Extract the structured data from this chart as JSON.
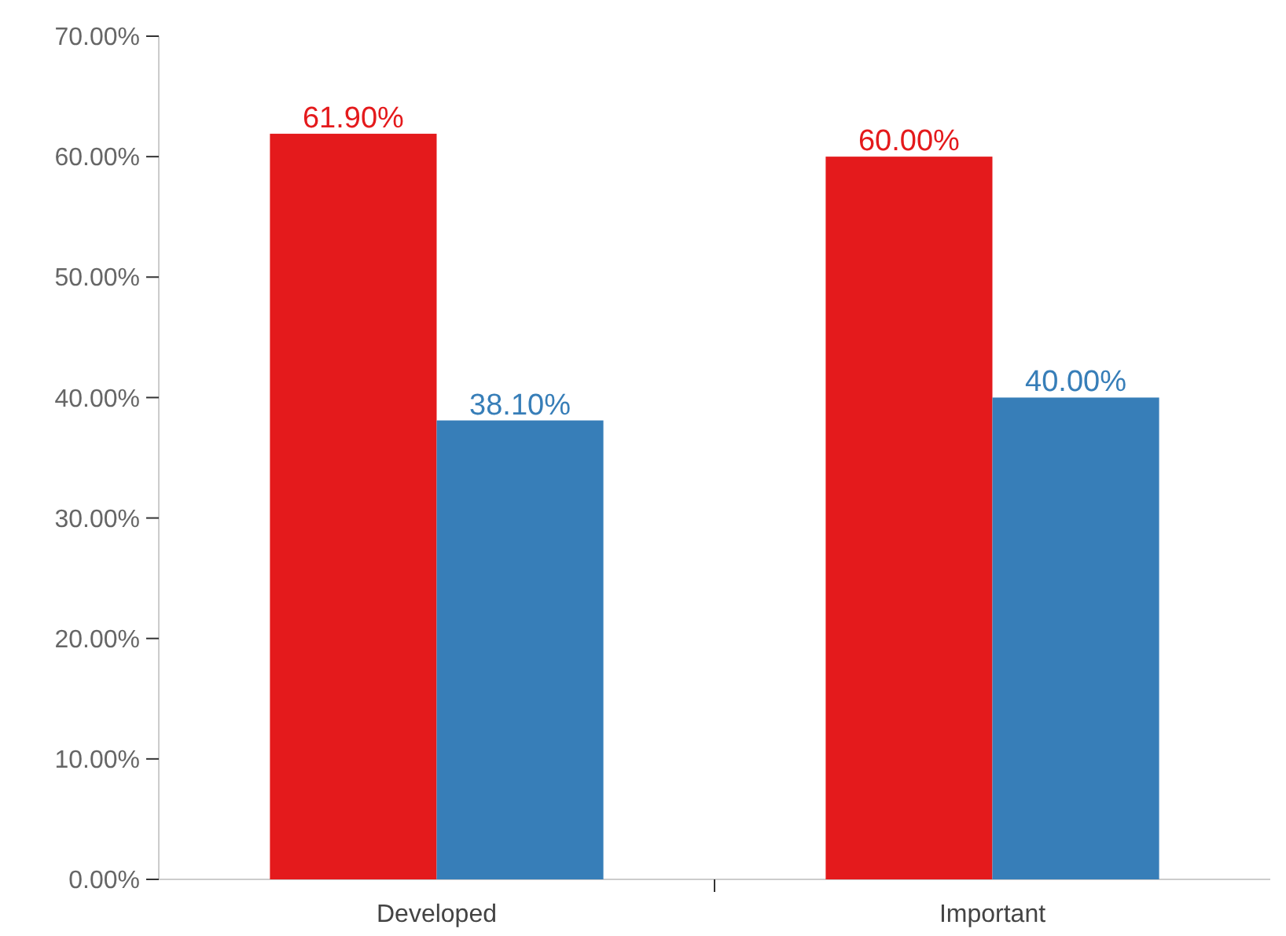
{
  "chart_data": {
    "type": "bar",
    "categories": [
      "Developed",
      "Important"
    ],
    "series": [
      {
        "color": "#e41a1c",
        "values": [
          61.9,
          60.0
        ],
        "value_labels": [
          "61.90%",
          "60.00%"
        ]
      },
      {
        "color": "#377eb8",
        "values": [
          38.1,
          40.0
        ],
        "value_labels": [
          "38.10%",
          "40.00%"
        ]
      }
    ],
    "ylim": [
      0,
      70
    ],
    "yticks": [
      {
        "value": 0,
        "label": "0.00%"
      },
      {
        "value": 10,
        "label": "10.00%"
      },
      {
        "value": 20,
        "label": "20.00%"
      },
      {
        "value": 30,
        "label": "30.00%"
      },
      {
        "value": 40,
        "label": "40.00%"
      },
      {
        "value": 50,
        "label": "50.00%"
      },
      {
        "value": 60,
        "label": "60.00%"
      },
      {
        "value": 70,
        "label": "70.00%"
      }
    ],
    "grid": false
  }
}
